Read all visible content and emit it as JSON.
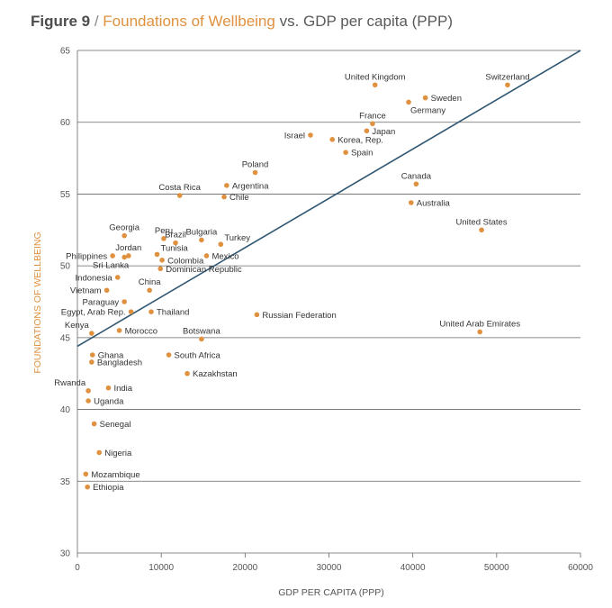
{
  "title": {
    "figure": "Figure 9",
    "separator": " / ",
    "highlight": "Foundations of Wellbeing",
    "rest": " vs. GDP per capita (PPP)"
  },
  "colors": {
    "accent": "#e0913f",
    "point": "#e0913f",
    "trendline": "#2f5672",
    "grid": "#666666"
  },
  "chart_data": {
    "type": "scatter",
    "xlabel": "GDP PER CAPITA (PPP)",
    "ylabel": "FOUNDATIONS OF WELLBEING",
    "xlim": [
      0,
      60000
    ],
    "ylim": [
      30,
      65
    ],
    "xticks": [
      0,
      10000,
      20000,
      30000,
      40000,
      50000,
      60000
    ],
    "yticks": [
      30,
      35,
      40,
      45,
      50,
      55,
      60,
      65
    ],
    "grid": "horizontal",
    "trendline": {
      "x": [
        0,
        60000
      ],
      "y": [
        44.4,
        65.0
      ]
    },
    "points": [
      {
        "label": "United Kingdom",
        "x": 35500,
        "y": 62.6,
        "pos": "top"
      },
      {
        "label": "Switzerland",
        "x": 51300,
        "y": 62.6,
        "pos": "top"
      },
      {
        "label": "Sweden",
        "x": 41500,
        "y": 61.7,
        "pos": "right"
      },
      {
        "label": "Germany",
        "x": 39500,
        "y": 61.4,
        "pos": "below-right"
      },
      {
        "label": "France",
        "x": 35200,
        "y": 59.9,
        "pos": "top"
      },
      {
        "label": "Japan",
        "x": 34500,
        "y": 59.4,
        "pos": "right"
      },
      {
        "label": "Israel",
        "x": 27800,
        "y": 59.1,
        "pos": "left"
      },
      {
        "label": "Korea, Rep.",
        "x": 30400,
        "y": 58.8,
        "pos": "right"
      },
      {
        "label": "Spain",
        "x": 32000,
        "y": 57.9,
        "pos": "right"
      },
      {
        "label": "Poland",
        "x": 21200,
        "y": 56.5,
        "pos": "top"
      },
      {
        "label": "Canada",
        "x": 40400,
        "y": 55.7,
        "pos": "top"
      },
      {
        "label": "Argentina",
        "x": 17800,
        "y": 55.6,
        "pos": "right"
      },
      {
        "label": "Costa Rica",
        "x": 12200,
        "y": 54.9,
        "pos": "top"
      },
      {
        "label": "Chile",
        "x": 17500,
        "y": 54.8,
        "pos": "right"
      },
      {
        "label": "Australia",
        "x": 39800,
        "y": 54.4,
        "pos": "right"
      },
      {
        "label": "United States",
        "x": 48200,
        "y": 52.5,
        "pos": "top"
      },
      {
        "label": "Georgia",
        "x": 5600,
        "y": 52.1,
        "pos": "top"
      },
      {
        "label": "Peru",
        "x": 10300,
        "y": 51.9,
        "pos": "top"
      },
      {
        "label": "Bulgaria",
        "x": 14800,
        "y": 51.8,
        "pos": "top"
      },
      {
        "label": "Brazil",
        "x": 11700,
        "y": 51.6,
        "pos": "top"
      },
      {
        "label": "Turkey",
        "x": 17100,
        "y": 51.5,
        "pos": "top-right"
      },
      {
        "label": "Jordan",
        "x": 6100,
        "y": 50.7,
        "pos": "top"
      },
      {
        "label": "Philippines",
        "x": 4200,
        "y": 50.7,
        "pos": "left"
      },
      {
        "label": "Tunisia",
        "x": 9500,
        "y": 50.8,
        "pos": "top-right"
      },
      {
        "label": "Mexico",
        "x": 15400,
        "y": 50.7,
        "pos": "right"
      },
      {
        "label": "Sri Lanka",
        "x": 5600,
        "y": 50.6,
        "pos": "below-left"
      },
      {
        "label": "Colombia",
        "x": 10100,
        "y": 50.4,
        "pos": "right"
      },
      {
        "label": "Dominican Republic",
        "x": 9900,
        "y": 49.8,
        "pos": "right"
      },
      {
        "label": "Indonesia",
        "x": 4800,
        "y": 49.2,
        "pos": "left"
      },
      {
        "label": "Vietnam",
        "x": 3500,
        "y": 48.3,
        "pos": "left"
      },
      {
        "label": "China",
        "x": 8600,
        "y": 48.3,
        "pos": "top"
      },
      {
        "label": "Paraguay",
        "x": 5600,
        "y": 47.5,
        "pos": "left"
      },
      {
        "label": "Egypt, Arab Rep.",
        "x": 6400,
        "y": 46.8,
        "pos": "left"
      },
      {
        "label": "Thailand",
        "x": 8800,
        "y": 46.8,
        "pos": "right"
      },
      {
        "label": "Russian Federation",
        "x": 21400,
        "y": 46.6,
        "pos": "right"
      },
      {
        "label": "Kenya",
        "x": 1700,
        "y": 45.3,
        "pos": "top-left"
      },
      {
        "label": "Morocco",
        "x": 5000,
        "y": 45.5,
        "pos": "right"
      },
      {
        "label": "United Arab Emirates",
        "x": 48000,
        "y": 45.4,
        "pos": "top"
      },
      {
        "label": "Botswana",
        "x": 14800,
        "y": 44.9,
        "pos": "top"
      },
      {
        "label": "Ghana",
        "x": 1800,
        "y": 43.8,
        "pos": "right"
      },
      {
        "label": "South Africa",
        "x": 10900,
        "y": 43.8,
        "pos": "right"
      },
      {
        "label": "Bangladesh",
        "x": 1700,
        "y": 43.3,
        "pos": "right"
      },
      {
        "label": "Kazakhstan",
        "x": 13100,
        "y": 42.5,
        "pos": "right"
      },
      {
        "label": "Rwanda",
        "x": 1300,
        "y": 41.3,
        "pos": "top-left"
      },
      {
        "label": "India",
        "x": 3700,
        "y": 41.5,
        "pos": "right"
      },
      {
        "label": "Uganda",
        "x": 1300,
        "y": 40.6,
        "pos": "right"
      },
      {
        "label": "Senegal",
        "x": 2000,
        "y": 39.0,
        "pos": "right"
      },
      {
        "label": "Nigeria",
        "x": 2600,
        "y": 37.0,
        "pos": "right"
      },
      {
        "label": "Mozambique",
        "x": 1000,
        "y": 35.5,
        "pos": "right"
      },
      {
        "label": "Ethiopia",
        "x": 1200,
        "y": 34.6,
        "pos": "right"
      }
    ]
  }
}
